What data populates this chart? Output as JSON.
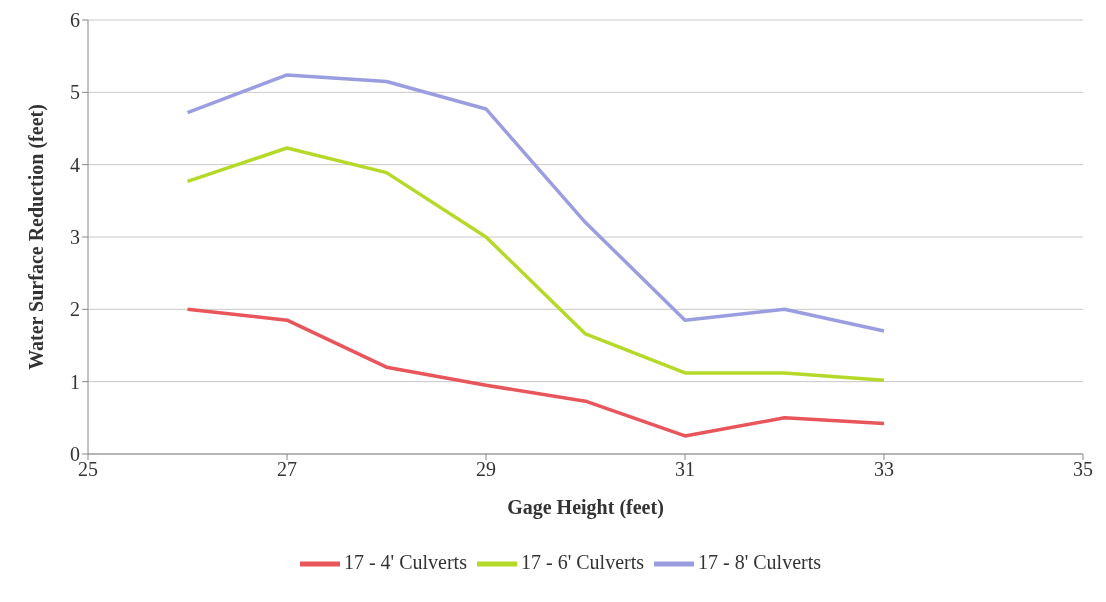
{
  "chart_data": {
    "type": "line",
    "xlabel": "Gage Height (feet)",
    "ylabel": "Water Surface Reduction (feet)",
    "x": [
      26,
      27,
      28,
      29,
      30,
      31,
      32,
      33
    ],
    "xlim": [
      25,
      35
    ],
    "xticks": [
      25,
      27,
      29,
      31,
      33,
      35
    ],
    "ylim": [
      0,
      6
    ],
    "yticks": [
      0,
      1,
      2,
      3,
      4,
      5,
      6
    ],
    "grid": "y",
    "legend": "bottom",
    "marker": "none",
    "line_style": "solid",
    "series": [
      {
        "name": "17 - 4' Culverts",
        "color": "#e8555a",
        "values": [
          2.0,
          1.85,
          1.2,
          0.95,
          0.73,
          0.25,
          0.5,
          0.42
        ]
      },
      {
        "name": "17 - 6' Culverts",
        "color": "#b5d929",
        "values": [
          3.77,
          4.23,
          3.89,
          3.0,
          1.66,
          1.12,
          1.12,
          1.02
        ]
      },
      {
        "name": "17 - 8' Culverts",
        "color": "#9a9ee0",
        "values": [
          4.72,
          5.24,
          5.15,
          4.77,
          3.2,
          1.85,
          2.0,
          1.7
        ]
      }
    ]
  }
}
